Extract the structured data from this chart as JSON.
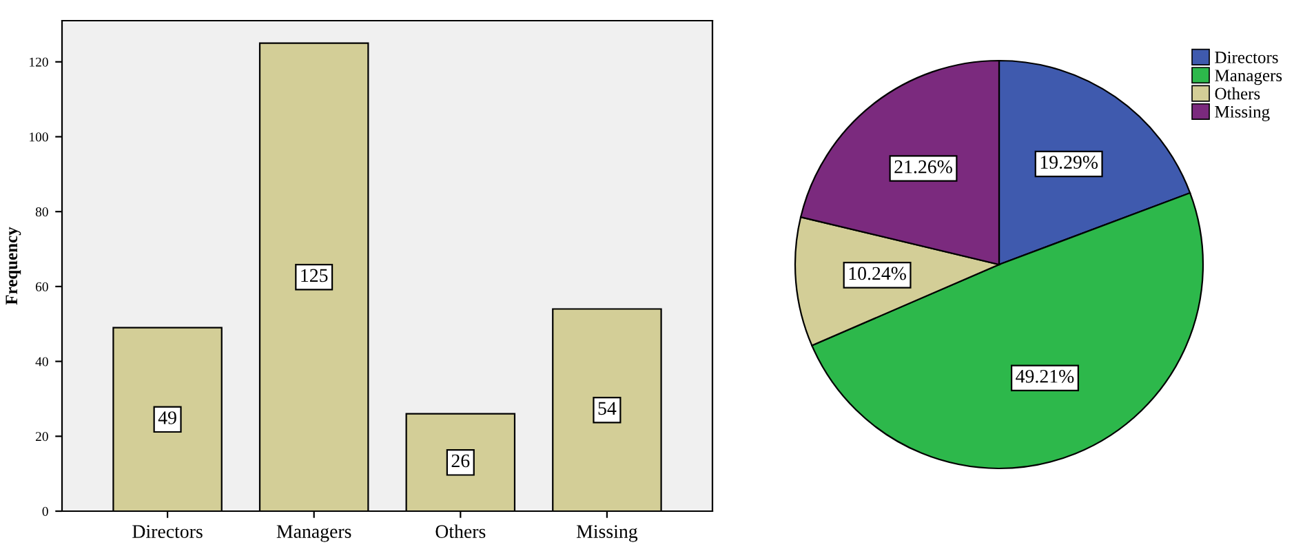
{
  "chart_data": [
    {
      "type": "bar",
      "ylabel": "Frequency",
      "categories": [
        "Directors",
        "Managers",
        "Others",
        "Missing"
      ],
      "values": [
        49,
        125,
        26,
        54
      ],
      "color": "#d3ce97",
      "ylim": [
        0,
        131
      ],
      "yticks": [
        0,
        20,
        40,
        60,
        80,
        100,
        120
      ],
      "data_labels": true,
      "grid": false,
      "legend": false
    },
    {
      "type": "pie",
      "categories": [
        "Directors",
        "Managers",
        "Others",
        "Missing"
      ],
      "values": [
        19.29,
        49.21,
        10.24,
        21.26
      ],
      "colors": [
        "#3f5aae",
        "#2db84b",
        "#d3ce97",
        "#7b2a7e"
      ],
      "value_labels": [
        "19.29%",
        "49.21%",
        "10.24%",
        "21.26%"
      ],
      "legend": "top right"
    }
  ]
}
